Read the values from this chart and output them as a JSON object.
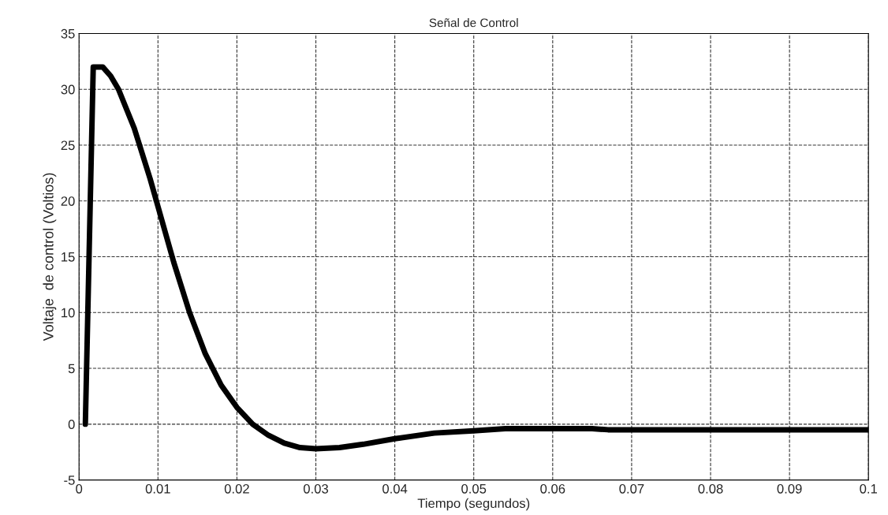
{
  "chart_data": {
    "type": "line",
    "title": "Señal de Control",
    "xlabel": "Tiempo (segundos)",
    "ylabel": "Voltaje  de control (Voltios)",
    "x": [
      0.0008,
      0.0018,
      0.003,
      0.004,
      0.005,
      0.007,
      0.009,
      0.01,
      0.012,
      0.014,
      0.016,
      0.018,
      0.02,
      0.022,
      0.024,
      0.026,
      0.028,
      0.03,
      0.033,
      0.036,
      0.04,
      0.045,
      0.05,
      0.054,
      0.065,
      0.067,
      0.1
    ],
    "series": [
      {
        "color": "#000000",
        "values": [
          0,
          32,
          32,
          31.2,
          30,
          26.5,
          22,
          19.5,
          14.5,
          10,
          6.3,
          3.5,
          1.5,
          0,
          -1,
          -1.7,
          -2.1,
          -2.2,
          -2.1,
          -1.8,
          -1.3,
          -0.8,
          -0.6,
          -0.4,
          -0.4,
          -0.5,
          -0.5
        ]
      }
    ],
    "xlim": [
      0,
      0.1
    ],
    "ylim": [
      -5,
      35
    ],
    "xticks": [
      0,
      0.01,
      0.02,
      0.03,
      0.04,
      0.05,
      0.06,
      0.07,
      0.08,
      0.09,
      0.1
    ],
    "yticks": [
      -5,
      0,
      5,
      10,
      15,
      20,
      25,
      30,
      35
    ],
    "grid": true,
    "line_style": "solid",
    "marker": "none",
    "legend": false
  }
}
